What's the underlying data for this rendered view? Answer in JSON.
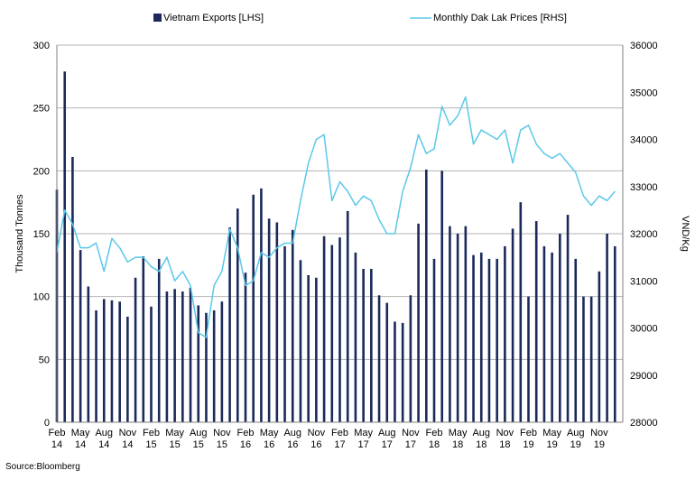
{
  "chart_data": {
    "type": "bar+line",
    "title": "",
    "source": "Source:Bloomberg",
    "ylabel_left": "Thousand Tonnes",
    "ylabel_right": "VND/Kg",
    "ylim_left": [
      0,
      300
    ],
    "ylim_right": [
      28000,
      36000
    ],
    "yticks_left": [
      "0",
      "50",
      "100",
      "150",
      "200",
      "250",
      "300"
    ],
    "yticks_right": [
      "28000",
      "29000",
      "30000",
      "31000",
      "32000",
      "33000",
      "34000",
      "35000",
      "36000"
    ],
    "x_tick_labels": [
      {
        "month": "Feb",
        "year": "14"
      },
      {
        "month": "May",
        "year": "14"
      },
      {
        "month": "Aug",
        "year": "14"
      },
      {
        "month": "Nov",
        "year": "14"
      },
      {
        "month": "Feb",
        "year": "15"
      },
      {
        "month": "May",
        "year": "15"
      },
      {
        "month": "Aug",
        "year": "15"
      },
      {
        "month": "Nov",
        "year": "15"
      },
      {
        "month": "Feb",
        "year": "16"
      },
      {
        "month": "May",
        "year": "16"
      },
      {
        "month": "Aug",
        "year": "16"
      },
      {
        "month": "Nov",
        "year": "16"
      },
      {
        "month": "Feb",
        "year": "17"
      },
      {
        "month": "May",
        "year": "17"
      },
      {
        "month": "Aug",
        "year": "17"
      },
      {
        "month": "Nov",
        "year": "17"
      },
      {
        "month": "Feb",
        "year": "18"
      },
      {
        "month": "May",
        "year": "18"
      },
      {
        "month": "Aug",
        "year": "18"
      },
      {
        "month": "Nov",
        "year": "18"
      },
      {
        "month": "Feb",
        "year": "19"
      },
      {
        "month": "May",
        "year": "19"
      },
      {
        "month": "Aug",
        "year": "19"
      },
      {
        "month": "Nov",
        "year": "19"
      }
    ],
    "series": [
      {
        "name": "Vietnam Exports [LHS]",
        "type": "bar",
        "axis": "left",
        "color": "#1b2a5a",
        "values": [
          185,
          279,
          211,
          137,
          108,
          89,
          98,
          97,
          96,
          84,
          115,
          132,
          92,
          130,
          104,
          106,
          104,
          107,
          93,
          87,
          89,
          96,
          155,
          170,
          119,
          181,
          186,
          162,
          159,
          140,
          153,
          129,
          117,
          115,
          148,
          141,
          147,
          168,
          135,
          122,
          122,
          101,
          95,
          80,
          79,
          101,
          158,
          201,
          130,
          200,
          156,
          150,
          156,
          133,
          135,
          130,
          130,
          140,
          154,
          175,
          100,
          160,
          140,
          135,
          150,
          165,
          130,
          100,
          100,
          120,
          150,
          140
        ]
      },
      {
        "name": "Monthly Dak Lak Prices [RHS]",
        "type": "line",
        "axis": "right",
        "color": "#5bc8e8",
        "values": [
          31600,
          32500,
          32200,
          31700,
          31700,
          31800,
          31200,
          31900,
          31700,
          31400,
          31500,
          31500,
          31300,
          31200,
          31500,
          31000,
          31200,
          30900,
          29900,
          29800,
          30900,
          31200,
          32100,
          31700,
          30900,
          31000,
          31600,
          31500,
          31700,
          31800,
          31800,
          32700,
          33500,
          34000,
          34100,
          32700,
          33100,
          32900,
          32600,
          32800,
          32700,
          32300,
          32000,
          32000,
          32900,
          33400,
          34100,
          33700,
          33800,
          34700,
          34300,
          34500,
          34900,
          33900,
          34200,
          34100,
          34000,
          34200,
          33500,
          34200,
          34300,
          33900,
          33700,
          33600,
          33700,
          33500,
          33300,
          32800,
          32600,
          32800,
          32700,
          32900
        ]
      }
    ],
    "legend_position": "top"
  }
}
